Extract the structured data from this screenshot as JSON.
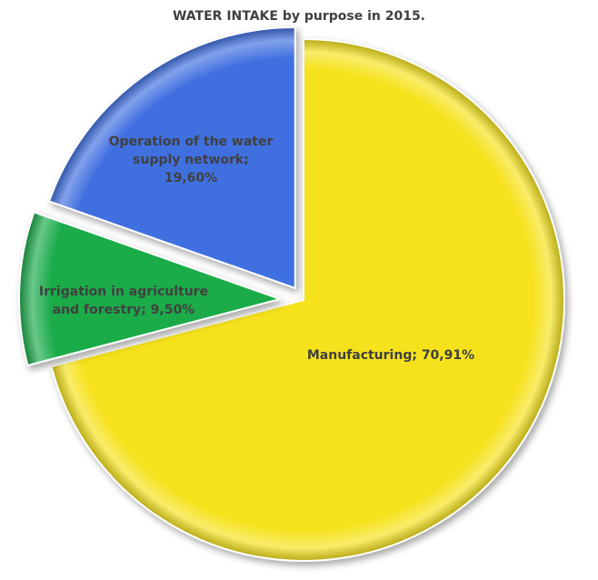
{
  "chart_data": {
    "type": "pie",
    "title": "WATER INTAKE by purpose in 2015.",
    "slices": [
      {
        "name": "Manufacturing",
        "value": 70.91,
        "value_text": "70,91%",
        "color": "#f5e21c",
        "label_lines": [
          "Manufacturing; 70,91%"
        ]
      },
      {
        "name": "Irrigation in agriculture and forestry",
        "value": 9.5,
        "value_text": "9,50%",
        "color": "#1aab4a",
        "label_lines": [
          "Irrigation in agriculture",
          "and forestry; 9,50%"
        ]
      },
      {
        "name": "Operation of the water supply network",
        "value": 19.6,
        "value_text": "19,60%",
        "color": "#3f6fe0",
        "label_lines": [
          "Operation of the water",
          "supply network;",
          "19,60%"
        ]
      }
    ],
    "legend": "none",
    "start_angle": "12 o'clock",
    "direction": "clockwise",
    "exploded": true
  }
}
